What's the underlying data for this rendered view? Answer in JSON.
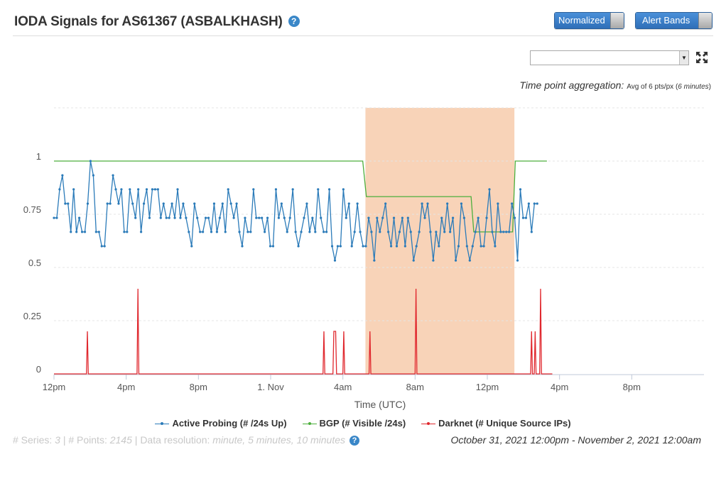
{
  "header": {
    "title": "IODA Signals for AS61367 (ASBALKHASH)",
    "help_glyph": "?",
    "normalized_label": "Normalized",
    "alert_bands_label": "Alert Bands"
  },
  "controls": {
    "select_value": "",
    "fullscreen_icon": "expand-arrows-icon"
  },
  "aggregation": {
    "label": "Time point aggregation:",
    "prefix": "Avg of 6 pts/px (",
    "minutes": "6 minutes",
    "suffix": ")"
  },
  "footer": {
    "series_label": "# Series:",
    "series_count": "3",
    "points_label": "# Points:",
    "points_count": "2145",
    "resolution_label": "Data resolution:",
    "resolution_value": "minute, 5 minutes, 10 minutes",
    "help_glyph": "?",
    "date_range": "October 31, 2021 12:00pm - November 2, 2021 12:00am"
  },
  "colors": {
    "active_probing": "#2b7bb9",
    "bgp": "#4caf3c",
    "darknet": "#e0282e",
    "alert_band": "#f8d3b8"
  },
  "chart_data": {
    "type": "line",
    "title": "",
    "xlabel": "Time (UTC)",
    "ylabel": "",
    "x_unit": "hours since October 31, 2021 12:00pm",
    "xlim": [
      0,
      36
    ],
    "ylim": [
      0,
      1.25
    ],
    "grid": true,
    "legend_position": "bottom",
    "x_ticks": [
      {
        "x": 0,
        "label": "12pm"
      },
      {
        "x": 4,
        "label": "4pm"
      },
      {
        "x": 8,
        "label": "8pm"
      },
      {
        "x": 12,
        "label": "1. Nov"
      },
      {
        "x": 16,
        "label": "4am"
      },
      {
        "x": 20,
        "label": "8am"
      },
      {
        "x": 24,
        "label": "12pm"
      },
      {
        "x": 28,
        "label": "4pm"
      },
      {
        "x": 32,
        "label": "8pm"
      }
    ],
    "y_ticks": [
      {
        "y": 0,
        "label": "0"
      },
      {
        "y": 0.25,
        "label": "0.25"
      },
      {
        "y": 0.5,
        "label": "0.5"
      },
      {
        "y": 0.75,
        "label": "0.75"
      },
      {
        "y": 1,
        "label": "1"
      }
    ],
    "alert_bands": [
      {
        "x_start": 17.25,
        "x_end": 25.5
      }
    ],
    "series": [
      {
        "name": "Active Probing (# /24s Up)",
        "x_start": 0,
        "x_step": 0.1556,
        "values": [
          0.733,
          0.733,
          0.867,
          0.933,
          0.8,
          0.8,
          0.667,
          0.867,
          0.667,
          0.733,
          0.667,
          0.667,
          0.8,
          1.0,
          0.933,
          0.667,
          0.667,
          0.6,
          0.6,
          0.8,
          0.8,
          0.933,
          0.867,
          0.8,
          0.867,
          0.667,
          0.667,
          0.867,
          0.8,
          0.733,
          0.867,
          0.667,
          0.8,
          0.867,
          0.733,
          0.867,
          0.867,
          0.867,
          0.733,
          0.8,
          0.733,
          0.733,
          0.8,
          0.733,
          0.867,
          0.733,
          0.8,
          0.733,
          0.667,
          0.6,
          0.8,
          0.733,
          0.667,
          0.667,
          0.733,
          0.733,
          0.667,
          0.8,
          0.667,
          0.733,
          0.8,
          0.667,
          0.867,
          0.8,
          0.733,
          0.8,
          0.667,
          0.6,
          0.733,
          0.667,
          0.667,
          0.867,
          0.733,
          0.733,
          0.733,
          0.667,
          0.733,
          0.6,
          0.6,
          0.867,
          0.733,
          0.8,
          0.733,
          0.667,
          0.733,
          0.867,
          0.667,
          0.6,
          0.667,
          0.733,
          0.8,
          0.667,
          0.733,
          0.667,
          0.867,
          0.733,
          0.667,
          0.667,
          0.867,
          0.6,
          0.533,
          0.6,
          0.6,
          0.867,
          0.733,
          0.8,
          0.6,
          0.667,
          0.8,
          0.667,
          0.6,
          0.6,
          0.733,
          0.667,
          0.533,
          0.733,
          0.667,
          0.733,
          0.8,
          0.667,
          0.6,
          0.733,
          0.6,
          0.667,
          0.733,
          0.6,
          0.733,
          0.667,
          0.533,
          0.6,
          0.667,
          0.8,
          0.733,
          0.8,
          0.667,
          0.533,
          0.667,
          0.6,
          0.733,
          0.667,
          0.8,
          0.667,
          0.733,
          0.533,
          0.6,
          0.8,
          0.733,
          0.6,
          0.533,
          0.6,
          0.667,
          0.733,
          0.6,
          0.6,
          0.733,
          0.867,
          0.667,
          0.6,
          0.8,
          0.667,
          0.667,
          0.667,
          0.667,
          0.8,
          0.733,
          0.533,
          0.867,
          0.733,
          0.733,
          0.8,
          0.667,
          0.8,
          0.8
        ]
      },
      {
        "name": "BGP (# Visible /24s)",
        "points": [
          [
            0,
            1
          ],
          [
            17.1,
            1
          ],
          [
            17.3,
            0.833
          ],
          [
            23.1,
            0.833
          ],
          [
            23.25,
            0.667
          ],
          [
            25.4,
            0.667
          ],
          [
            25.55,
            1
          ],
          [
            27.3,
            1
          ]
        ]
      },
      {
        "name": "Darknet (# Unique Source IPs)",
        "points": [
          [
            0,
            0
          ],
          [
            1.8,
            0
          ],
          [
            1.85,
            0.2
          ],
          [
            1.9,
            0
          ],
          [
            4.6,
            0
          ],
          [
            4.65,
            0.4
          ],
          [
            4.7,
            0
          ],
          [
            14.9,
            0
          ],
          [
            14.95,
            0.2
          ],
          [
            15.0,
            0
          ],
          [
            15.45,
            0
          ],
          [
            15.5,
            0.2
          ],
          [
            15.6,
            0.2
          ],
          [
            15.65,
            0
          ],
          [
            16.0,
            0
          ],
          [
            16.05,
            0.2
          ],
          [
            16.1,
            0
          ],
          [
            17.45,
            0
          ],
          [
            17.5,
            0.2
          ],
          [
            17.55,
            0
          ],
          [
            20.0,
            0
          ],
          [
            20.05,
            0.4
          ],
          [
            20.1,
            0
          ],
          [
            26.4,
            0
          ],
          [
            26.45,
            0.2
          ],
          [
            26.5,
            0
          ],
          [
            26.6,
            0
          ],
          [
            26.65,
            0.2
          ],
          [
            26.7,
            0
          ],
          [
            26.9,
            0
          ],
          [
            26.95,
            0.4
          ],
          [
            27.0,
            0
          ],
          [
            27.6,
            0
          ]
        ]
      }
    ]
  }
}
